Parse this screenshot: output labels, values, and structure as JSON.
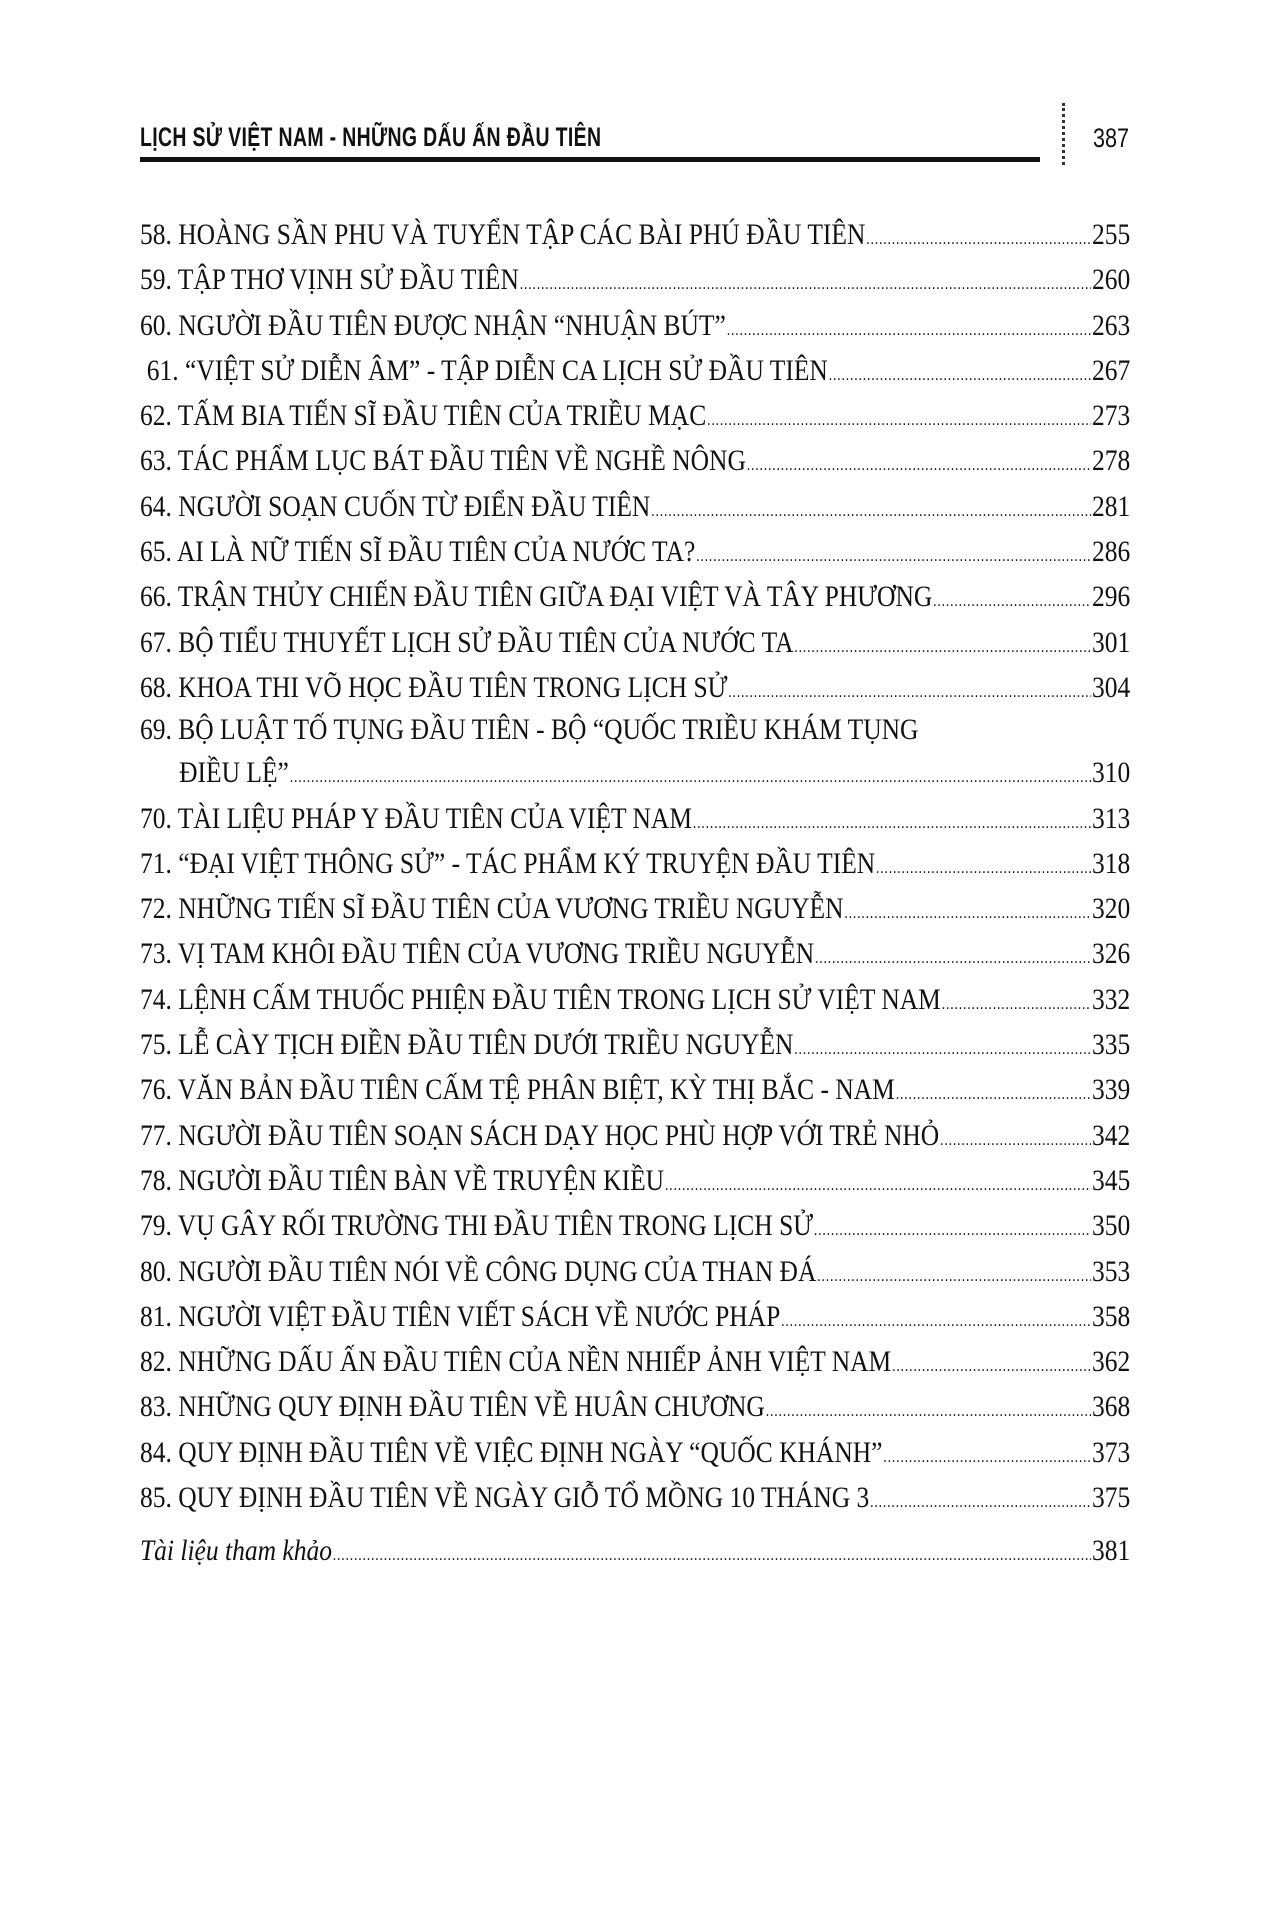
{
  "header": {
    "title": "LỊCH SỬ VIỆT NAM - NHỮNG DẤU ẤN ĐẦU TIÊN",
    "page_number": "387"
  },
  "toc": [
    {
      "title": "58. HOÀNG SẦN PHU VÀ TUYỂN TẬP CÁC BÀI PHÚ ĐẦU TIÊN",
      "page": "255"
    },
    {
      "title": "59. TẬP THƠ VỊNH SỬ ĐẦU TIÊN",
      "page": "260"
    },
    {
      "title": "60. NGƯỜI ĐẦU TIÊN ĐƯỢC NHẬN “NHUẬN BÚT”",
      "page": "263"
    },
    {
      "title": "61. “VIỆT SỬ DIỄN ÂM” - TẬP DIỄN CA LỊCH SỬ ĐẦU TIÊN",
      "page": "267"
    },
    {
      "title": "62. TẤM BIA TIẾN SĨ ĐẦU TIÊN CỦA TRIỀU MẠC",
      "page": "273"
    },
    {
      "title": "63. TÁC PHẨM LỤC BÁT ĐẦU TIÊN VỀ NGHỀ NÔNG",
      "page": "278"
    },
    {
      "title": "64. NGƯỜI SOẠN CUỐN TỪ ĐIỂN ĐẦU TIÊN",
      "page": "281"
    },
    {
      "title": "65. AI LÀ NỮ TIẾN SĨ ĐẦU TIÊN CỦA NƯỚC TA?",
      "page": "286"
    },
    {
      "title": "66. TRẬN THỦY CHIẾN ĐẦU TIÊN GIỮA ĐẠI VIỆT VÀ TÂY PHƯƠNG",
      "page": "296"
    },
    {
      "title": "67. BỘ TIỂU THUYẾT LỊCH SỬ ĐẦU TIÊN CỦA NƯỚC TA",
      "page": "301"
    },
    {
      "title": "68. KHOA THI VÕ HỌC ĐẦU TIÊN TRONG LỊCH SỬ",
      "page": "304"
    },
    {
      "title": "69. BỘ LUẬT TỐ TỤNG ĐẦU TIÊN - BỘ “QUỐC TRIỀU KHÁM TỤNG",
      "title_cont": "ĐIỀU LỆ”",
      "page": "310"
    },
    {
      "title": "70. TÀI LIỆU PHÁP Y ĐẦU TIÊN CỦA VIỆT NAM",
      "page": "313"
    },
    {
      "title": "71. “ĐẠI VIỆT THÔNG SỬ” - TÁC PHẨM KÝ TRUYỆN ĐẦU TIÊN",
      "page": "318"
    },
    {
      "title": "72. NHỮNG TIẾN SĨ ĐẦU TIÊN CỦA VƯƠNG TRIỀU NGUYỄN",
      "page": "320"
    },
    {
      "title": "73. VỊ TAM KHÔI ĐẦU TIÊN CỦA VƯƠNG TRIỀU NGUYỄN",
      "page": "326"
    },
    {
      "title": "74. LỆNH CẤM THUỐC PHIỆN ĐẦU TIÊN TRONG LỊCH SỬ VIỆT NAM",
      "page": "332"
    },
    {
      "title": "75. LỄ CÀY TỊCH ĐIỀN ĐẦU TIÊN DƯỚI TRIỀU NGUYỄN",
      "page": "335"
    },
    {
      "title": "76. VĂN BẢN ĐẦU TIÊN CẤM TỆ PHÂN BIỆT, KỲ THỊ BẮC - NAM",
      "page": "339"
    },
    {
      "title": "77. NGƯỜI ĐẦU TIÊN SOẠN SÁCH DẠY HỌC PHÙ HỢP VỚI TRẺ NHỎ",
      "page": "342"
    },
    {
      "title": "78. NGƯỜI ĐẦU TIÊN BÀN VỀ TRUYỆN KIỀU",
      "page": "345"
    },
    {
      "title": "79. VỤ GÂY RỐI TRƯỜNG THI ĐẦU TIÊN TRONG LỊCH SỬ",
      "page": "350"
    },
    {
      "title": "80. NGƯỜI ĐẦU TIÊN NÓI VỀ CÔNG DỤNG CỦA THAN ĐÁ",
      "page": "353"
    },
    {
      "title": "81. NGƯỜI VIỆT ĐẦU TIÊN VIẾT SÁCH VỀ NƯỚC PHÁP",
      "page": "358"
    },
    {
      "title": "82. NHỮNG DẤU ẤN ĐẦU TIÊN CỦA NỀN NHIẾP ẢNH VIỆT NAM",
      "page": "362"
    },
    {
      "title": "83. NHỮNG QUY ĐỊNH ĐẦU TIÊN VỀ HUÂN CHƯƠNG",
      "page": "368"
    },
    {
      "title": "84. QUY ĐỊNH ĐẦU TIÊN VỀ VIỆC ĐỊNH NGÀY “QUỐC KHÁNH”",
      "page": "373"
    },
    {
      "title": "85. QUY ĐỊNH ĐẦU TIÊN VỀ NGÀY GIỖ TỔ MỒNG 10 THÁNG 3",
      "page": "375"
    }
  ],
  "references": {
    "title": "Tài liệu tham khảo",
    "page": "381"
  }
}
